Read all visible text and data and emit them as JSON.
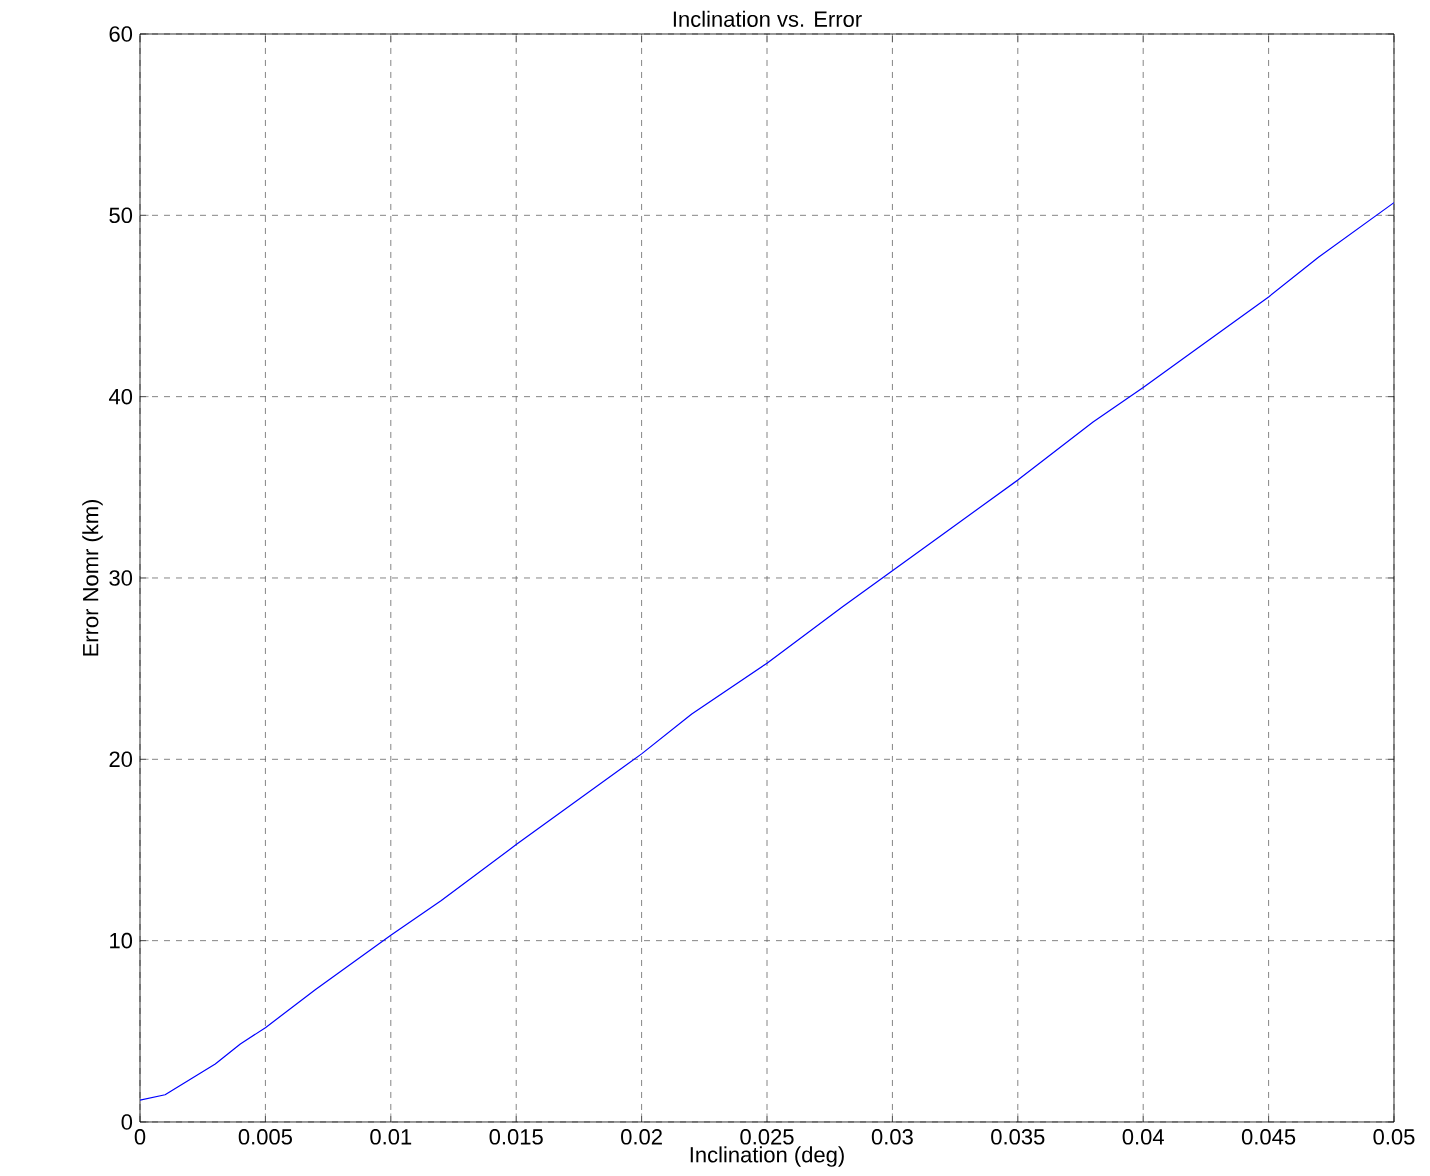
{
  "chart_data": {
    "type": "line",
    "title": "Inclination vs. Error",
    "xlabel": "Inclination (deg)",
    "ylabel": "Error Nomr (km)",
    "x": [
      0,
      0.001,
      0.003,
      0.004,
      0.005,
      0.007,
      0.01,
      0.012,
      0.015,
      0.02,
      0.022,
      0.025,
      0.028,
      0.03,
      0.032,
      0.035,
      0.038,
      0.04,
      0.042,
      0.045,
      0.047,
      0.05
    ],
    "series": [
      {
        "color": "#0000ff",
        "values": [
          1.2,
          1.5,
          3.2,
          4.3,
          5.2,
          7.3,
          10.3,
          12.2,
          15.3,
          20.3,
          22.5,
          25.3,
          28.4,
          30.4,
          32.4,
          35.4,
          38.6,
          40.5,
          42.5,
          45.5,
          47.7,
          50.7
        ]
      }
    ],
    "xlim": [
      0,
      0.05
    ],
    "ylim": [
      0,
      60
    ],
    "xticks": [
      0,
      0.005,
      0.01,
      0.015,
      0.02,
      0.025,
      0.03,
      0.035,
      0.04,
      0.045,
      0.05
    ],
    "yticks": [
      0,
      10,
      20,
      30,
      40,
      50,
      60
    ],
    "grid": true,
    "marker": "none",
    "line_style": "solid"
  }
}
